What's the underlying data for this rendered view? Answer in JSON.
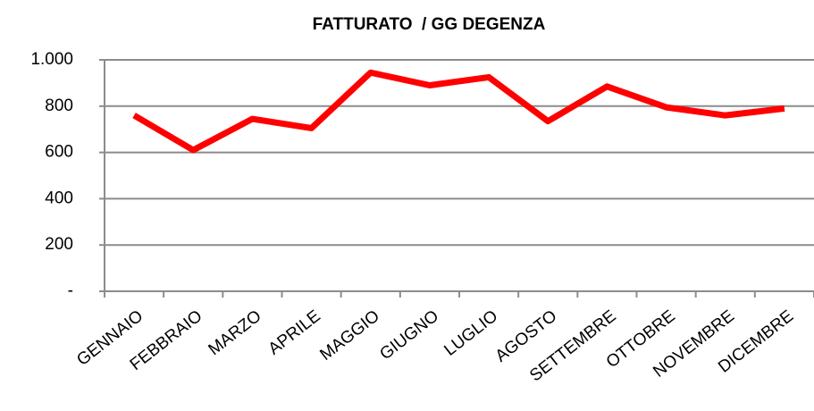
{
  "chart_data": {
    "type": "line",
    "title": "FATTURATO  / GG DEGENZA",
    "categories": [
      "GENNAIO",
      "FEBBRAIO",
      "MARZO",
      "APRILE",
      "MAGGIO",
      "GIUGNO",
      "LUGLIO",
      "AGOSTO",
      "SETTEMBRE",
      "OTTOBRE",
      "NOVEMBRE",
      "DICEMBRE"
    ],
    "series": [
      {
        "name": "FATTURATO / GG DEGENZA",
        "color": "#ff0000",
        "values": [
          760,
          610,
          745,
          705,
          945,
          890,
          925,
          735,
          885,
          795,
          760,
          790
        ]
      }
    ],
    "ylim": [
      0,
      1000
    ],
    "yticks": [
      {
        "value": 0,
        "label": "-"
      },
      200,
      400,
      600,
      800,
      {
        "value": 1000,
        "label": "1.000"
      }
    ],
    "grid": true,
    "legend": false
  }
}
